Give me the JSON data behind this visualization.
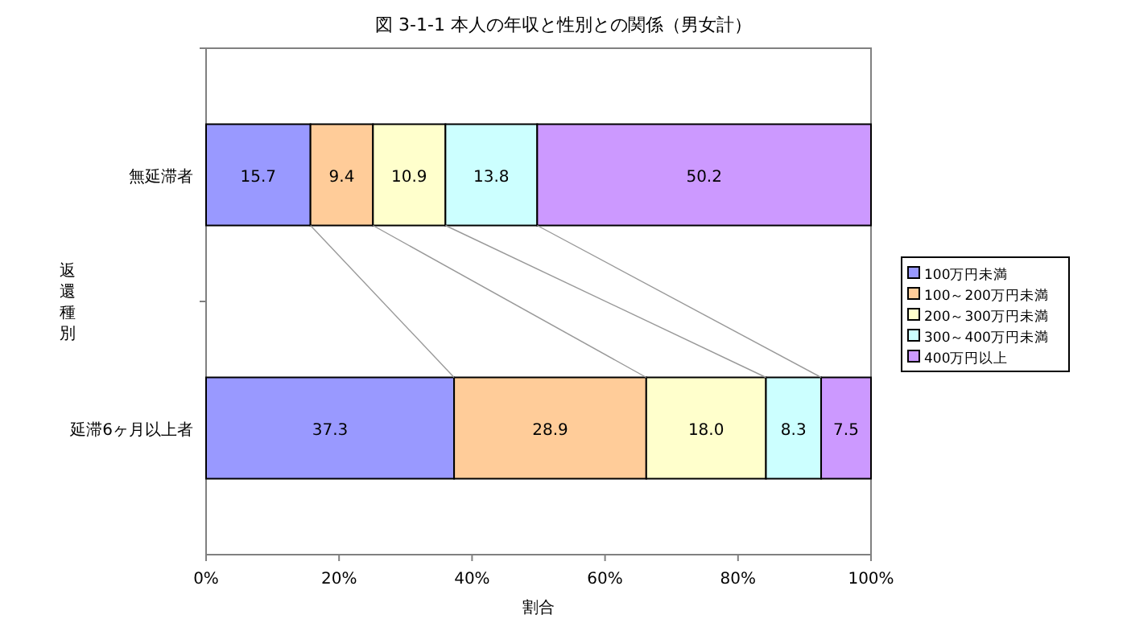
{
  "chart_data": {
    "type": "bar",
    "orientation": "horizontal",
    "stacked": true,
    "title": "図 3-1-1  本人の年収と性別との関係（男女計）",
    "xlabel": "割合",
    "ylabel": "返還種別",
    "categories": [
      "無延滞者",
      "延滞6ヶ月以上者"
    ],
    "series": [
      {
        "name": "100万円未満",
        "color": "#9999ff",
        "values": [
          15.7,
          37.3
        ]
      },
      {
        "name": "100～200万円未満",
        "color": "#ffcc99",
        "values": [
          9.4,
          28.9
        ]
      },
      {
        "name": "200～300万円未満",
        "color": "#ffffcc",
        "values": [
          10.9,
          18.0
        ]
      },
      {
        "name": "300～400万円未満",
        "color": "#ccffff",
        "values": [
          13.8,
          8.3
        ]
      },
      {
        "name": "400万円以上",
        "color": "#cc99ff",
        "values": [
          50.2,
          7.5
        ]
      }
    ],
    "value_labels": [
      [
        "15.7",
        "37.3"
      ],
      [
        "9.4",
        "28.9"
      ],
      [
        "10.9",
        "18.0"
      ],
      [
        "13.8",
        "8.3"
      ],
      [
        "50.2",
        "7.5"
      ]
    ],
    "xlim": [
      0,
      100
    ],
    "xticks": [
      {
        "value": 0,
        "label": "0%"
      },
      {
        "value": 20,
        "label": "20%"
      },
      {
        "value": 40,
        "label": "40%"
      },
      {
        "value": 60,
        "label": "60%"
      },
      {
        "value": 80,
        "label": "80%"
      },
      {
        "value": 100,
        "label": "100%"
      }
    ],
    "grid": false,
    "legend": "right"
  }
}
